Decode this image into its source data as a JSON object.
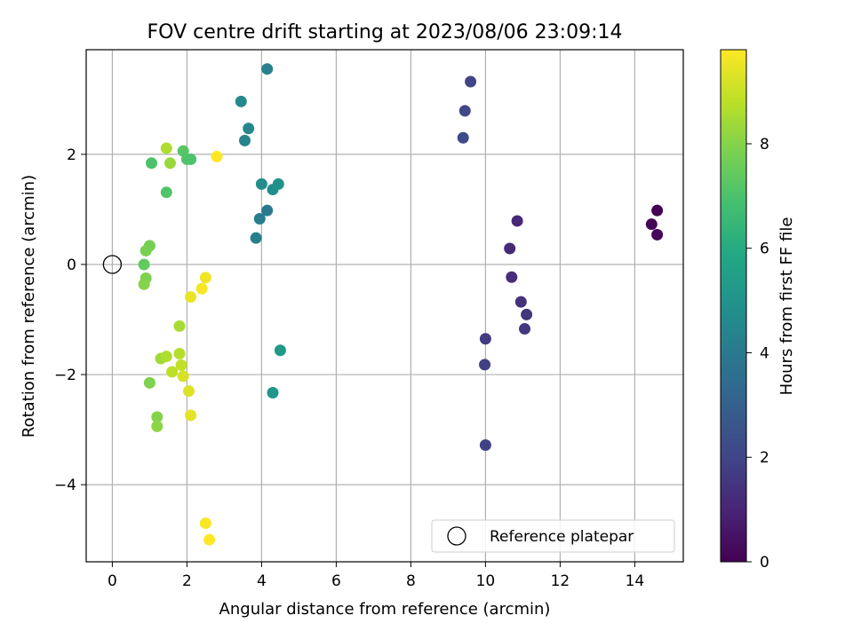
{
  "chart_data": {
    "type": "scatter",
    "title": "FOV centre drift starting at 2023/08/06 23:09:14",
    "xlabel": "Angular distance from reference (arcmin)",
    "ylabel": "Rotation from reference (arcmin)",
    "xlim": [
      -0.7,
      15.3
    ],
    "ylim": [
      -5.4,
      3.9
    ],
    "xticks": [
      0,
      2,
      4,
      6,
      8,
      10,
      12,
      14
    ],
    "xtick_labels": [
      "0",
      "2",
      "4",
      "6",
      "8",
      "10",
      "12",
      "14"
    ],
    "yticks": [
      -4,
      -2,
      0,
      2
    ],
    "ytick_labels": [
      "−4",
      "−2",
      "0",
      "2"
    ],
    "grid": true,
    "colormap": "viridis",
    "colorbar": {
      "label": "Hours from first FF file",
      "range": [
        0,
        9.8
      ],
      "ticks": [
        0,
        2,
        4,
        6,
        8
      ],
      "tick_labels": [
        "0",
        "2",
        "4",
        "6",
        "8"
      ]
    },
    "legend": {
      "position": "lower-right",
      "entries": [
        {
          "label": "Reference platepar",
          "marker": "open-circle"
        }
      ]
    },
    "reference_point": {
      "x": 0,
      "y": 0
    },
    "points": [
      {
        "x": 14.6,
        "y": 0.98,
        "c": 0.0
      },
      {
        "x": 14.45,
        "y": 0.73,
        "c": 0.1
      },
      {
        "x": 14.6,
        "y": 0.54,
        "c": 0.2
      },
      {
        "x": 10.85,
        "y": 0.79,
        "c": 1.1
      },
      {
        "x": 10.65,
        "y": 0.29,
        "c": 1.2
      },
      {
        "x": 10.7,
        "y": -0.23,
        "c": 1.3
      },
      {
        "x": 10.95,
        "y": -0.68,
        "c": 1.4
      },
      {
        "x": 11.1,
        "y": -0.91,
        "c": 1.5
      },
      {
        "x": 11.05,
        "y": -1.17,
        "c": 1.6
      },
      {
        "x": 10.0,
        "y": -1.35,
        "c": 1.7
      },
      {
        "x": 9.98,
        "y": -1.82,
        "c": 1.8
      },
      {
        "x": 10.0,
        "y": -3.28,
        "c": 1.9
      },
      {
        "x": 9.6,
        "y": 3.32,
        "c": 2.0
      },
      {
        "x": 9.45,
        "y": 2.79,
        "c": 2.1
      },
      {
        "x": 9.4,
        "y": 2.3,
        "c": 2.2
      },
      {
        "x": 4.15,
        "y": 3.55,
        "c": 4.3
      },
      {
        "x": 3.45,
        "y": 2.96,
        "c": 4.6
      },
      {
        "x": 3.65,
        "y": 2.47,
        "c": 4.5
      },
      {
        "x": 3.55,
        "y": 2.25,
        "c": 4.4
      },
      {
        "x": 4.0,
        "y": 1.46,
        "c": 4.7
      },
      {
        "x": 4.3,
        "y": 1.36,
        "c": 4.8
      },
      {
        "x": 4.45,
        "y": 1.46,
        "c": 4.9
      },
      {
        "x": 4.15,
        "y": 0.98,
        "c": 4.0
      },
      {
        "x": 3.95,
        "y": 0.83,
        "c": 4.1
      },
      {
        "x": 3.85,
        "y": 0.48,
        "c": 4.2
      },
      {
        "x": 4.5,
        "y": -1.56,
        "c": 5.2
      },
      {
        "x": 4.3,
        "y": -2.33,
        "c": 5.1
      },
      {
        "x": 1.9,
        "y": 2.06,
        "c": 7.2
      },
      {
        "x": 2.0,
        "y": 1.91,
        "c": 7.1
      },
      {
        "x": 2.1,
        "y": 1.91,
        "c": 7.0
      },
      {
        "x": 1.05,
        "y": 1.84,
        "c": 7.0
      },
      {
        "x": 1.45,
        "y": 1.31,
        "c": 7.1
      },
      {
        "x": 1.45,
        "y": 2.11,
        "c": 8.6
      },
      {
        "x": 1.55,
        "y": 1.84,
        "c": 8.3
      },
      {
        "x": 2.8,
        "y": 1.96,
        "c": 9.8
      },
      {
        "x": 1.0,
        "y": 0.34,
        "c": 7.7
      },
      {
        "x": 0.9,
        "y": 0.25,
        "c": 7.8
      },
      {
        "x": 0.85,
        "y": 0.0,
        "c": 7.4
      },
      {
        "x": 0.9,
        "y": -0.25,
        "c": 7.9
      },
      {
        "x": 0.85,
        "y": -0.36,
        "c": 8.0
      },
      {
        "x": 2.5,
        "y": -0.24,
        "c": 9.6
      },
      {
        "x": 2.4,
        "y": -0.44,
        "c": 9.7
      },
      {
        "x": 2.1,
        "y": -0.59,
        "c": 9.5
      },
      {
        "x": 1.8,
        "y": -1.12,
        "c": 8.5
      },
      {
        "x": 1.3,
        "y": -1.71,
        "c": 8.4
      },
      {
        "x": 1.45,
        "y": -1.67,
        "c": 8.6
      },
      {
        "x": 1.8,
        "y": -1.62,
        "c": 8.7
      },
      {
        "x": 1.6,
        "y": -1.95,
        "c": 8.8
      },
      {
        "x": 1.85,
        "y": -1.83,
        "c": 8.9
      },
      {
        "x": 1.9,
        "y": -2.03,
        "c": 9.2
      },
      {
        "x": 2.05,
        "y": -2.3,
        "c": 9.3
      },
      {
        "x": 2.1,
        "y": -2.74,
        "c": 9.4
      },
      {
        "x": 1.0,
        "y": -2.15,
        "c": 7.9
      },
      {
        "x": 1.2,
        "y": -2.77,
        "c": 8.0
      },
      {
        "x": 1.2,
        "y": -2.94,
        "c": 8.1
      },
      {
        "x": 2.5,
        "y": -4.7,
        "c": 9.7
      },
      {
        "x": 2.6,
        "y": -5.0,
        "c": 9.8
      }
    ]
  }
}
